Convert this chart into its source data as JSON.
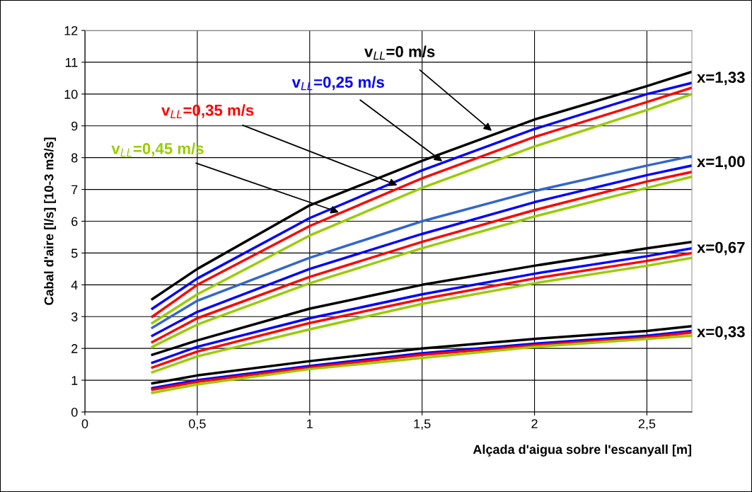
{
  "chart_data": {
    "type": "line",
    "xlabel": "Alçada d'aigua sobre l'escanyall [m]",
    "ylabel": "Cabal d'aire [l/s] [10-3 m3/s]",
    "x": [
      0.3,
      0.5,
      1,
      1.5,
      2,
      2.5,
      2.7
    ],
    "series": [
      {
        "color": "#000000",
        "values": [
          3.55,
          4.5,
          6.5,
          7.9,
          9.2,
          10.25,
          10.7
        ]
      },
      {
        "color": "#0000ff",
        "values": [
          3.25,
          4.2,
          6.1,
          7.6,
          8.9,
          10.0,
          10.35
        ]
      },
      {
        "color": "#ff0000",
        "values": [
          3.0,
          4.0,
          5.85,
          7.35,
          8.65,
          9.75,
          10.2
        ]
      },
      {
        "color": "#99cc00",
        "values": [
          2.8,
          3.7,
          5.55,
          7.05,
          8.35,
          9.5,
          10.0
        ]
      },
      {
        "color": "#3366cc",
        "values": [
          2.65,
          3.5,
          4.85,
          6.0,
          6.95,
          7.75,
          8.05
        ]
      },
      {
        "color": "#0000ff",
        "values": [
          2.4,
          3.15,
          4.5,
          5.6,
          6.6,
          7.45,
          7.75
        ]
      },
      {
        "color": "#ff0000",
        "values": [
          2.2,
          2.95,
          4.25,
          5.35,
          6.35,
          7.25,
          7.55
        ]
      },
      {
        "color": "#99cc00",
        "values": [
          2.05,
          2.75,
          4.05,
          5.15,
          6.15,
          7.05,
          7.4
        ]
      },
      {
        "color": "#000000",
        "values": [
          1.8,
          2.25,
          3.25,
          4.0,
          4.6,
          5.15,
          5.35
        ]
      },
      {
        "color": "#0000ff",
        "values": [
          1.55,
          2.05,
          2.95,
          3.7,
          4.35,
          4.9,
          5.15
        ]
      },
      {
        "color": "#ff0000",
        "values": [
          1.4,
          1.9,
          2.8,
          3.55,
          4.2,
          4.75,
          5.0
        ]
      },
      {
        "color": "#99cc00",
        "values": [
          1.25,
          1.75,
          2.6,
          3.4,
          4.05,
          4.6,
          4.85
        ]
      },
      {
        "color": "#000000",
        "values": [
          0.9,
          1.15,
          1.6,
          2.0,
          2.3,
          2.55,
          2.7
        ]
      },
      {
        "color": "#0000ff",
        "values": [
          0.75,
          1.0,
          1.45,
          1.85,
          2.15,
          2.4,
          2.55
        ]
      },
      {
        "color": "#ff0000",
        "values": [
          0.7,
          0.95,
          1.4,
          1.8,
          2.1,
          2.35,
          2.5
        ]
      },
      {
        "color": "#99cc00",
        "values": [
          0.6,
          0.87,
          1.35,
          1.7,
          2.05,
          2.3,
          2.4
        ]
      }
    ],
    "annotations": [
      {
        "text": "v$_{LL}$=0 m/s",
        "x": 1.81,
        "y": 8.84
      },
      {
        "text": "v$_{LL}$=0,25 m/s",
        "x": 1.59,
        "y": 7.88
      },
      {
        "text": "v$_{LL}$=0,35 m/s",
        "x": 1.39,
        "y": 7.13
      },
      {
        "text": "v$_{LL}$=0,45 m/s",
        "x": 1.13,
        "y": 6.28
      },
      "x=1,33",
      "x=1,00",
      "x=0,67",
      "x=0,33"
    ],
    "xlim": [
      0,
      2.7
    ],
    "xticks": [
      0,
      {
        "value": 0.5,
        "label": "0,5"
      },
      1,
      {
        "value": 1.5,
        "label": "1,5"
      },
      2,
      {
        "value": 2.5,
        "label": "2,5"
      }
    ],
    "ylim": [
      0,
      12
    ],
    "yticks": [
      0,
      1,
      2,
      3,
      4,
      5,
      6,
      7,
      8,
      9,
      10,
      11,
      12
    ],
    "grid": true,
    "marker": "none",
    "line_style": "solid"
  }
}
